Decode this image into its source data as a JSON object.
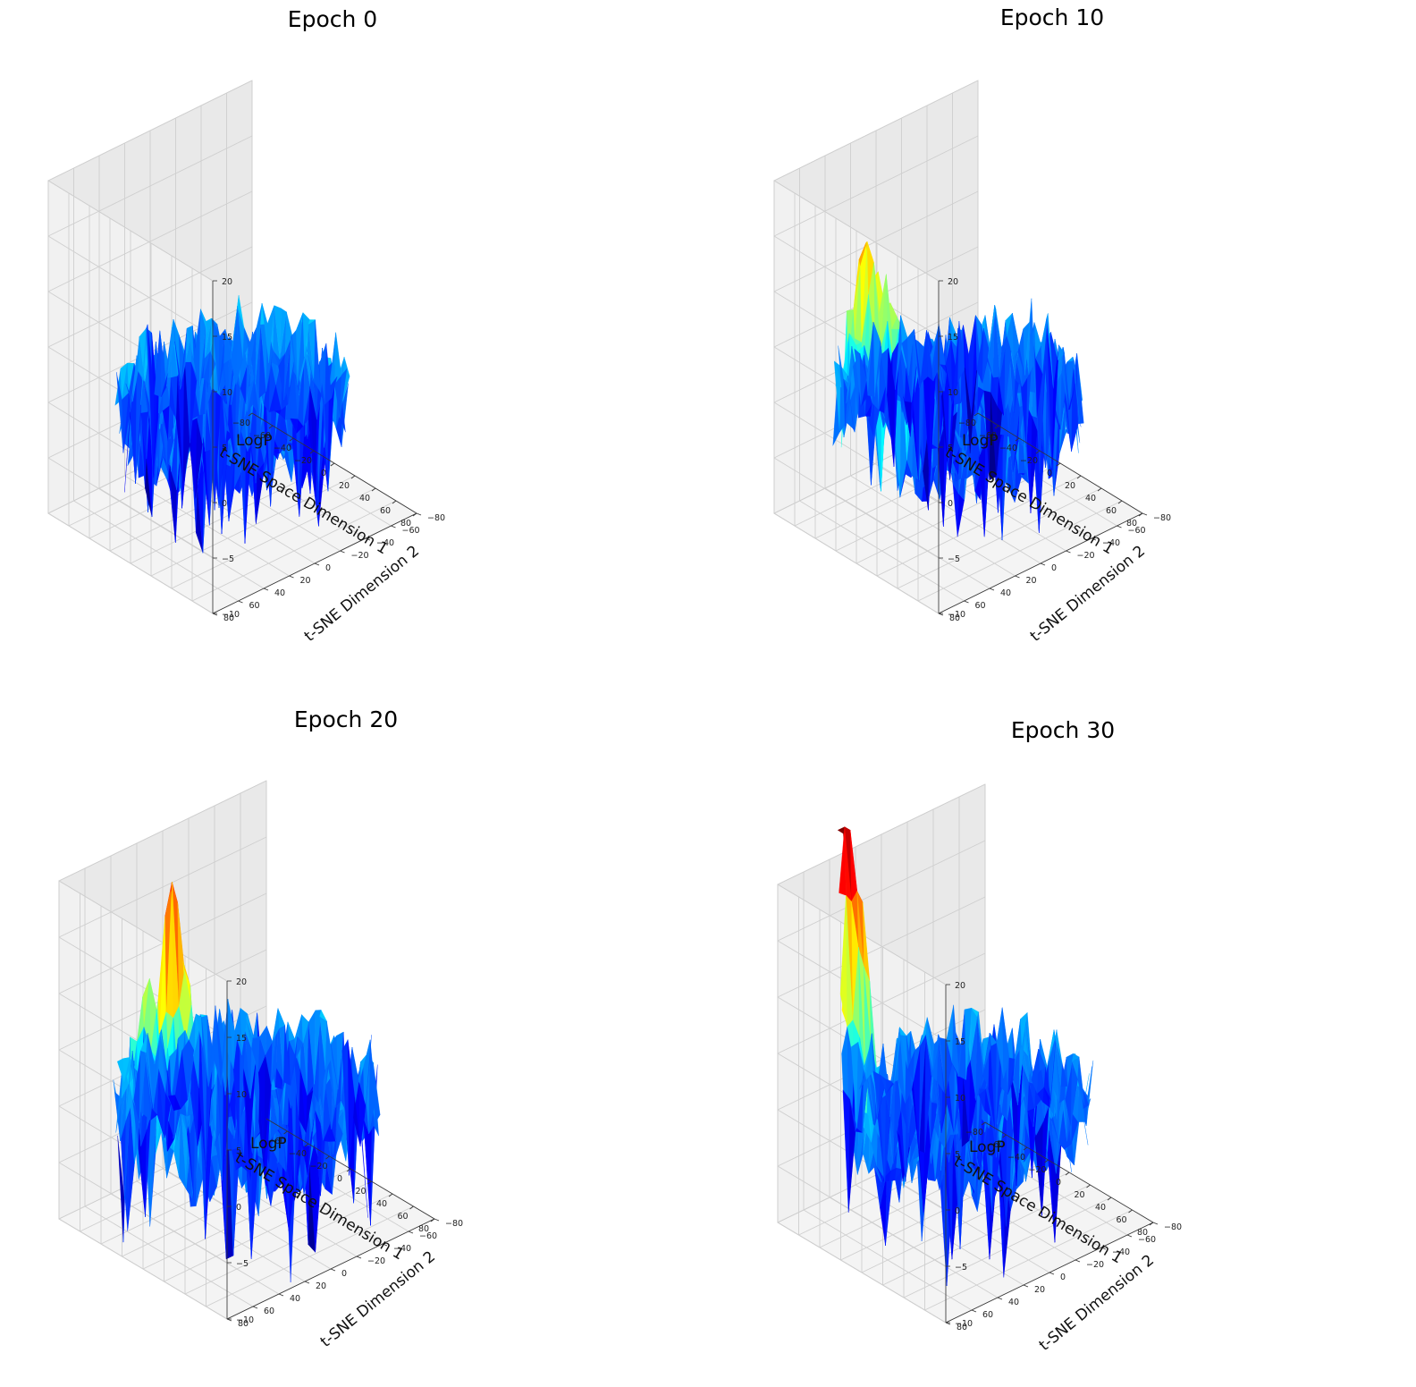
{
  "chart_data": [
    {
      "type": "surface3d",
      "title": "Epoch 0",
      "xlabel": "t-SNE Space Dimension 1",
      "ylabel": "t-SNE Dimension 2",
      "zlabel": "LogP",
      "x_ticks": [
        -80,
        -60,
        -40,
        -20,
        0,
        20,
        40,
        60,
        80
      ],
      "y_ticks": [
        -80,
        -60,
        -40,
        -20,
        0,
        20,
        40,
        60,
        80
      ],
      "z_ticks": [
        -10,
        -5,
        0,
        5,
        10,
        15,
        20
      ],
      "xlim": [
        -80,
        80
      ],
      "ylim": [
        -80,
        80
      ],
      "zlim": [
        -10,
        20
      ],
      "colormap": "jet",
      "surface_base_logp": 0,
      "roughness": 4,
      "radius": 72,
      "peaks": []
    },
    {
      "type": "surface3d",
      "title": "Epoch 10",
      "xlabel": "t-SNE Space Dimension 1",
      "ylabel": "t-SNE Dimension 2",
      "zlabel": "LogP",
      "x_ticks": [
        -80,
        -60,
        -40,
        -20,
        0,
        20,
        40,
        60,
        80
      ],
      "y_ticks": [
        -80,
        -60,
        -40,
        -20,
        0,
        20,
        40,
        60,
        80
      ],
      "z_ticks": [
        -10,
        -5,
        0,
        5,
        10,
        15,
        20
      ],
      "xlim": [
        -80,
        80
      ],
      "ylim": [
        -80,
        80
      ],
      "zlim": [
        -10,
        20
      ],
      "colormap": "jet",
      "surface_base_logp": 0,
      "roughness": 4,
      "radius": 78,
      "peaks": [
        {
          "x": -10,
          "y": 60,
          "logp": 16,
          "width": 28
        }
      ]
    },
    {
      "type": "surface3d",
      "title": "Epoch 20",
      "xlabel": "t-SNE Space Dimension 1",
      "ylabel": "t-SNE Dimension 2",
      "zlabel": "LogP",
      "x_ticks": [
        -60,
        -40,
        -20,
        0,
        20,
        40,
        60,
        80
      ],
      "y_ticks": [
        -80,
        -60,
        -40,
        -20,
        0,
        20,
        40,
        60,
        80
      ],
      "z_ticks": [
        -10,
        -5,
        0,
        5,
        10,
        15,
        20
      ],
      "xlim": [
        -80,
        80
      ],
      "ylim": [
        -80,
        80
      ],
      "zlim": [
        -10,
        20
      ],
      "colormap": "jet",
      "surface_base_logp": 0,
      "roughness": 4,
      "radius": 80,
      "peaks": [
        {
          "x": 0,
          "y": 55,
          "logp": 25,
          "width": 16
        },
        {
          "x": -30,
          "y": 55,
          "logp": 12,
          "width": 14
        }
      ]
    },
    {
      "type": "surface3d",
      "title": "Epoch 30",
      "xlabel": "t-SNE Space Dimension 1",
      "ylabel": "t-SNE Dimension 2",
      "zlabel": "LogP",
      "x_ticks": [
        -80,
        -60,
        -40,
        -20,
        0,
        20,
        40,
        60,
        80
      ],
      "y_ticks": [
        -80,
        -60,
        -40,
        -20,
        0,
        20,
        40,
        60,
        80
      ],
      "z_ticks": [
        -10,
        -5,
        0,
        5,
        10,
        15,
        20
      ],
      "xlim": [
        -80,
        80
      ],
      "ylim": [
        -80,
        80
      ],
      "zlim": [
        -10,
        20
      ],
      "colormap": "jet",
      "surface_base_logp": 0,
      "roughness": 4,
      "radius": 78,
      "peaks": [
        {
          "x": -40,
          "y": 60,
          "logp": 28,
          "width": 20
        }
      ]
    }
  ]
}
